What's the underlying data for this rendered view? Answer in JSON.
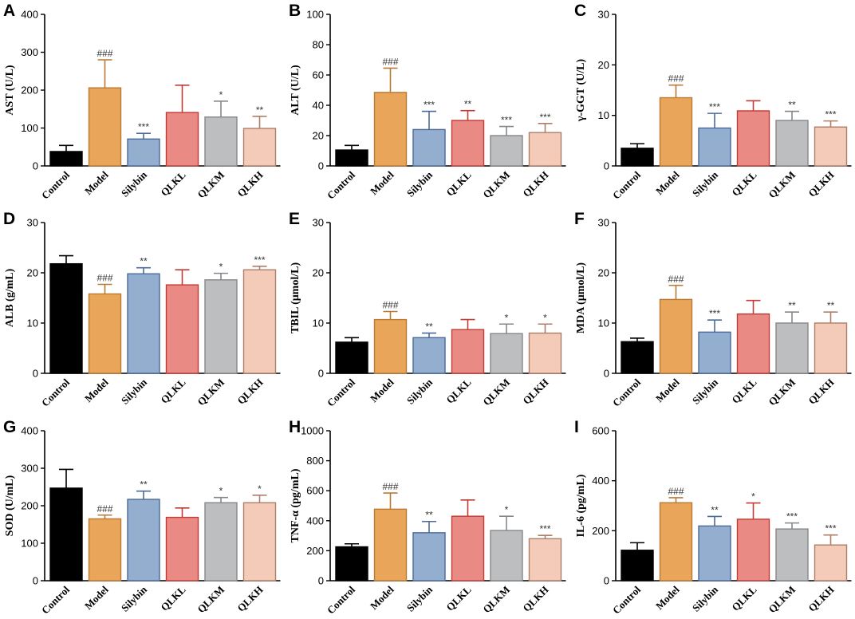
{
  "colors": {
    "Control": {
      "fill": "#000000",
      "stroke": "#000000"
    },
    "Model": {
      "fill": "#E9A65A",
      "stroke": "#B87A34"
    },
    "Silybin": {
      "fill": "#94AECF",
      "stroke": "#4B6A9B"
    },
    "QLKL": {
      "fill": "#E98B84",
      "stroke": "#C23B36"
    },
    "QLKM": {
      "fill": "#BDBEC0",
      "stroke": "#85878A"
    },
    "QLKH": {
      "fill": "#F3CBB8",
      "stroke": "#AD7E69"
    }
  },
  "chart_data": [
    {
      "panel": "A",
      "type": "bar",
      "ylabel": "AST (U/L)",
      "ylim": [
        0,
        400
      ],
      "yticks": [
        "0",
        "100",
        "200",
        "300",
        "400"
      ],
      "categories": [
        "Control",
        "Model",
        "Silybin",
        "QLKL",
        "QLKM",
        "QLKH"
      ],
      "values": [
        38,
        206,
        71,
        141,
        129,
        99
      ],
      "errors": [
        16,
        74,
        15,
        72,
        42,
        32
      ],
      "significance": [
        "",
        "###",
        "***",
        "",
        "*",
        "**"
      ]
    },
    {
      "panel": "B",
      "type": "bar",
      "ylabel": "ALT (U/L)",
      "ylim": [
        0,
        100
      ],
      "yticks": [
        "0",
        "20",
        "40",
        "60",
        "80",
        "100"
      ],
      "categories": [
        "Control",
        "Model",
        "Silybin",
        "QLKL",
        "QLKM",
        "QLKH"
      ],
      "values": [
        10.5,
        48.5,
        24,
        30,
        20,
        22
      ],
      "errors": [
        3,
        16,
        12,
        6.5,
        6,
        6
      ],
      "significance": [
        "",
        "###",
        "***",
        "**",
        "***",
        "***"
      ]
    },
    {
      "panel": "C",
      "type": "bar",
      "ylabel": "γ-GGT (U/L)",
      "ylim": [
        0,
        30
      ],
      "yticks": [
        "0",
        "10",
        "20",
        "30"
      ],
      "categories": [
        "Control",
        "Model",
        "Silybin",
        "QLKL",
        "QLKM",
        "QLKH"
      ],
      "values": [
        3.5,
        13.5,
        7.5,
        10.9,
        9,
        7.7
      ],
      "errors": [
        0.9,
        2.5,
        2.9,
        2,
        1.8,
        1.2
      ],
      "significance": [
        "",
        "###",
        "***",
        "",
        "**",
        "***"
      ]
    },
    {
      "panel": "D",
      "type": "bar",
      "ylabel": "ALB (g/mL)",
      "ylim": [
        0,
        30
      ],
      "yticks": [
        "0",
        "10",
        "20",
        "30"
      ],
      "categories": [
        "Control",
        "Model",
        "Silybin",
        "QLKL",
        "QLKM",
        "QLKH"
      ],
      "values": [
        21.8,
        15.8,
        19.8,
        17.6,
        18.6,
        20.6
      ],
      "errors": [
        1.6,
        1.9,
        1.2,
        3,
        1.3,
        0.7
      ],
      "significance": [
        "",
        "###",
        "**",
        "",
        "*",
        "***"
      ]
    },
    {
      "panel": "E",
      "type": "bar",
      "ylabel": "TBIL (μmol/L)",
      "ylim": [
        0,
        30
      ],
      "yticks": [
        "0",
        "10",
        "20",
        "30"
      ],
      "categories": [
        "Control",
        "Model",
        "Silybin",
        "QLKL",
        "QLKM",
        "QLKH"
      ],
      "values": [
        6.2,
        10.7,
        7.1,
        8.7,
        7.9,
        8
      ],
      "errors": [
        0.9,
        1.6,
        0.9,
        2,
        1.9,
        1.8
      ],
      "significance": [
        "",
        "###",
        "**",
        "",
        "*",
        "*"
      ]
    },
    {
      "panel": "F",
      "type": "bar",
      "ylabel": "MDA (μmol/L)",
      "ylim": [
        0,
        30
      ],
      "yticks": [
        "0",
        "10",
        "20",
        "30"
      ],
      "categories": [
        "Control",
        "Model",
        "Silybin",
        "QLKL",
        "QLKM",
        "QLKH"
      ],
      "values": [
        6.3,
        14.7,
        8.2,
        11.8,
        10,
        10
      ],
      "errors": [
        0.7,
        2.8,
        2.4,
        2.7,
        2.2,
        2.2
      ],
      "significance": [
        "",
        "###",
        "***",
        "",
        "**",
        "**"
      ]
    },
    {
      "panel": "G",
      "type": "bar",
      "ylabel": "SOD (U/mL)",
      "ylim": [
        0,
        400
      ],
      "yticks": [
        "0",
        "100",
        "200",
        "300",
        "400"
      ],
      "categories": [
        "Control",
        "Model",
        "Silybin",
        "QLKL",
        "QLKM",
        "QLKH"
      ],
      "values": [
        247,
        165,
        217,
        169,
        208,
        208
      ],
      "errors": [
        50,
        10,
        22,
        25,
        14,
        20
      ],
      "significance": [
        "",
        "###",
        "**",
        "",
        "*",
        "*"
      ]
    },
    {
      "panel": "H",
      "type": "bar",
      "ylabel": "TNF-α (pg/mL)",
      "ylim": [
        0,
        1000
      ],
      "yticks": [
        "0",
        "200",
        "400",
        "600",
        "800",
        "1000"
      ],
      "categories": [
        "Control",
        "Model",
        "Silybin",
        "QLKL",
        "QLKM",
        "QLKH"
      ],
      "values": [
        226,
        477,
        320,
        430,
        335,
        280
      ],
      "errors": [
        20,
        108,
        75,
        108,
        95,
        22
      ],
      "significance": [
        "",
        "###",
        "**",
        "",
        "*",
        "***"
      ]
    },
    {
      "panel": "I",
      "type": "bar",
      "ylabel": "IL-6 (pg/mL)",
      "ylim": [
        0,
        600
      ],
      "yticks": [
        "0",
        "200",
        "400",
        "600"
      ],
      "categories": [
        "Control",
        "Model",
        "Silybin",
        "QLKL",
        "QLKM",
        "QLKH"
      ],
      "values": [
        122,
        312,
        219,
        246,
        207,
        143
      ],
      "errors": [
        30,
        20,
        38,
        65,
        24,
        40
      ],
      "significance": [
        "",
        "###",
        "**",
        "*",
        "***",
        "***"
      ]
    }
  ]
}
